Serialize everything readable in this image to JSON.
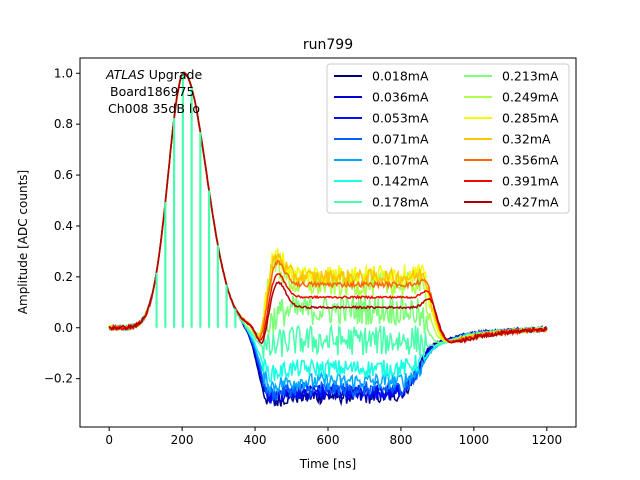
{
  "chart_data": {
    "type": "line",
    "title": "run799",
    "xlabel": "Time [ns]",
    "ylabel": "Amplitude [ADC counts]",
    "xlim": [
      -80,
      1280
    ],
    "ylim": [
      -0.39,
      1.06
    ],
    "xticks": [
      0,
      200,
      400,
      600,
      800,
      1000,
      1200
    ],
    "yticks": [
      -0.2,
      0.0,
      0.2,
      0.4,
      0.6,
      0.8,
      1.0
    ],
    "grid": false,
    "legend_placement": "top-right",
    "legend_columns": 2,
    "annotation": {
      "line1_italic": "ATLAS",
      "line1_rest": " Upgrade",
      "line2": "Board186975",
      "line3": "Ch008 35dB lo"
    },
    "series": [
      {
        "name": "0.018mA",
        "color": "#00007f",
        "plateau": -0.27,
        "noise": 0.03
      },
      {
        "name": "0.036mA",
        "color": "#0000d0",
        "plateau": -0.26,
        "noise": 0.03
      },
      {
        "name": "0.053mA",
        "color": "#0010ff",
        "plateau": -0.25,
        "noise": 0.03
      },
      {
        "name": "0.071mA",
        "color": "#0060ff",
        "plateau": -0.24,
        "noise": 0.03
      },
      {
        "name": "0.107mA",
        "color": "#00a8ff",
        "plateau": -0.21,
        "noise": 0.032
      },
      {
        "name": "0.142mA",
        "color": "#16ffe1",
        "plateau": -0.16,
        "noise": 0.035
      },
      {
        "name": "0.178mA",
        "color": "#48ffae",
        "plateau": -0.05,
        "noise": 0.06
      },
      {
        "name": "0.213mA",
        "color": "#7cff79",
        "plateau": 0.07,
        "noise": 0.06
      },
      {
        "name": "0.249mA",
        "color": "#aeff48",
        "plateau": 0.17,
        "noise": 0.05
      },
      {
        "name": "0.285mA",
        "color": "#f1fc06",
        "plateau": 0.21,
        "noise": 0.04
      },
      {
        "name": "0.32mA",
        "color": "#ffc400",
        "plateau": 0.2,
        "noise": 0.03
      },
      {
        "name": "0.356mA",
        "color": "#ff6800",
        "plateau": 0.17,
        "noise": 0.01
      },
      {
        "name": "0.391mA",
        "color": "#f10800",
        "plateau": 0.12,
        "noise": 0.004
      },
      {
        "name": "0.427mA",
        "color": "#b20000",
        "plateau": 0.08,
        "noise": 0.004
      }
    ]
  }
}
